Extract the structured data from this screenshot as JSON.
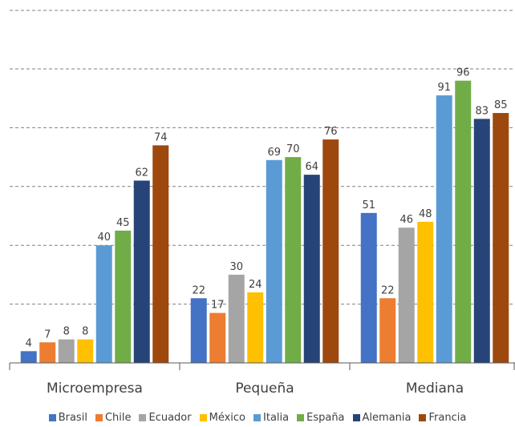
{
  "chart_data": {
    "type": "bar",
    "title": "",
    "xlabel": "",
    "ylabel": "",
    "categories": [
      "Microempresa",
      "Pequeña",
      "Mediana"
    ],
    "ylim": [
      0,
      100
    ],
    "grid": true,
    "legend_position": "bottom",
    "series": [
      {
        "name": "Brasil",
        "color": "#4472C4",
        "values": [
          4,
          22,
          51
        ]
      },
      {
        "name": "Chile",
        "color": "#ED7D31",
        "values": [
          7,
          17,
          22
        ]
      },
      {
        "name": "Ecuador",
        "color": "#A5A5A5",
        "values": [
          8,
          30,
          46
        ]
      },
      {
        "name": "México",
        "color": "#FFC000",
        "values": [
          8,
          24,
          48
        ]
      },
      {
        "name": "Italia",
        "color": "#5B9BD5",
        "values": [
          40,
          69,
          91
        ]
      },
      {
        "name": "España",
        "color": "#70AD47",
        "values": [
          45,
          70,
          96
        ]
      },
      {
        "name": "Alemania",
        "color": "#264478",
        "values": [
          62,
          64,
          83
        ]
      },
      {
        "name": "Francia",
        "color": "#9E480E",
        "values": [
          74,
          76,
          85
        ]
      }
    ]
  }
}
